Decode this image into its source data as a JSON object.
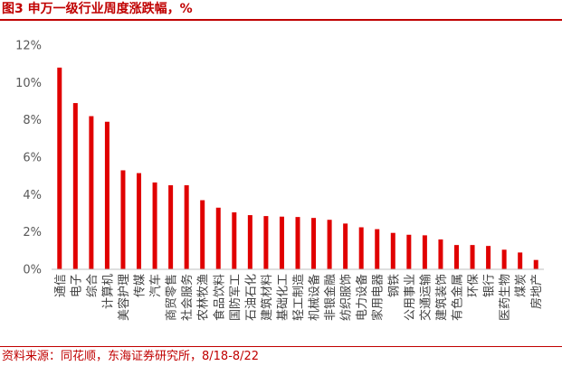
{
  "title": "图3 申万一级行业周度涨跌幅，%",
  "source": "资料来源：同花顺，东海证券研究所，8/18-8/22",
  "colors": {
    "bar": "#E00000",
    "accent": "#C00000",
    "axis": "#BFBFBF",
    "text": "#595959"
  },
  "chart_data": {
    "type": "bar",
    "title": "",
    "xlabel": "",
    "ylabel": "",
    "ylim": [
      0,
      12
    ],
    "yticks": [
      0,
      2,
      4,
      6,
      8,
      10,
      12
    ],
    "ytick_labels": [
      "0%",
      "2%",
      "4%",
      "6%",
      "8%",
      "10%",
      "12%"
    ],
    "grid": false,
    "legend": "none",
    "categories": [
      "通信",
      "电子",
      "综合",
      "计算机",
      "美容护理",
      "传媒",
      "汽车",
      "商贸零售",
      "社会服务",
      "农林牧渔",
      "食品饮料",
      "国防军工",
      "石油石化",
      "建筑材料",
      "基础化工",
      "轻工制造",
      "机械设备",
      "非银金融",
      "纺织服饰",
      "电力设备",
      "家用电器",
      "钢铁",
      "公用事业",
      "交通运输",
      "建筑装饰",
      "有色金属",
      "环保",
      "银行",
      "医药生物",
      "煤炭",
      "房地产"
    ],
    "values": [
      10.8,
      8.9,
      8.2,
      7.9,
      5.3,
      5.15,
      4.65,
      4.5,
      4.5,
      3.7,
      3.3,
      3.05,
      2.9,
      2.85,
      2.82,
      2.8,
      2.75,
      2.65,
      2.45,
      2.25,
      2.15,
      1.95,
      1.85,
      1.82,
      1.6,
      1.3,
      1.3,
      1.25,
      1.05,
      0.9,
      0.5
    ]
  }
}
